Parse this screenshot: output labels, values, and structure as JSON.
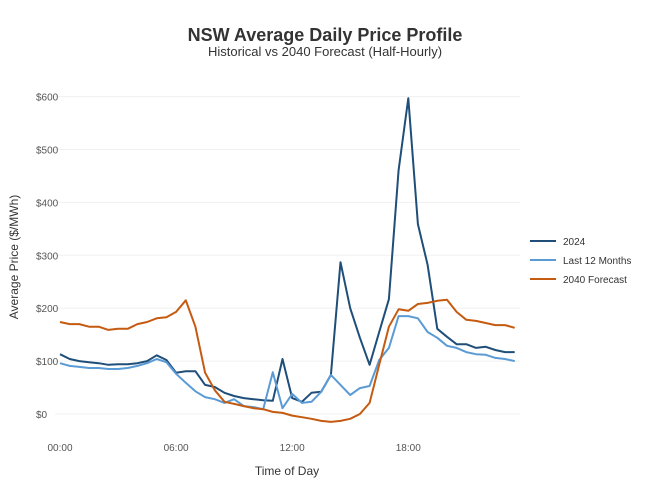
{
  "chart_data": {
    "type": "line",
    "title": "NSW Average Daily Price Profile",
    "subtitle": "Historical vs 2040 Forecast (Half-Hourly)",
    "xlabel": "Time of Day",
    "ylabel": "Average Price ($/MWh)",
    "x_interval": "half-hourly, 48 points from 00:00 to 23:30",
    "x_ticks": [
      "00:00",
      "06:00",
      "12:00",
      "18:00"
    ],
    "y_ticks": [
      "$0",
      "$100",
      "$200",
      "$300",
      "$400",
      "$500",
      "$600"
    ],
    "y_tick_values": [
      0,
      100,
      200,
      300,
      400,
      500,
      600
    ],
    "ylim": [
      -50,
      650
    ],
    "grid": "horizontal",
    "legend_position": "right",
    "series": [
      {
        "name": "2024",
        "color": "#1f4e79",
        "values": [
          113,
          104,
          100,
          98,
          96,
          93,
          94,
          94,
          96,
          100,
          111,
          102,
          78,
          81,
          81,
          55,
          51,
          40,
          34,
          30,
          28,
          26,
          25,
          104,
          30,
          23,
          40,
          42,
          74,
          287,
          200,
          144,
          93,
          155,
          217,
          461,
          597,
          359,
          282,
          161,
          146,
          132,
          132,
          125,
          127,
          121,
          117,
          117
        ]
      },
      {
        "name": "Last 12 Months",
        "color": "#5b9bd5",
        "values": [
          96,
          91,
          89,
          87,
          87,
          85,
          85,
          87,
          91,
          96,
          104,
          98,
          76,
          59,
          43,
          32,
          28,
          21,
          28,
          15,
          13,
          9,
          79,
          11,
          38,
          21,
          23,
          42,
          74,
          55,
          36,
          49,
          53,
          102,
          125,
          185,
          185,
          181,
          155,
          144,
          129,
          125,
          117,
          113,
          112,
          106,
          104,
          100
        ]
      },
      {
        "name": "2040 Forecast",
        "color": "#c55a11",
        "values": [
          174,
          170,
          170,
          165,
          165,
          159,
          161,
          161,
          170,
          174,
          181,
          183,
          193,
          215,
          165,
          78,
          45,
          23,
          19,
          15,
          11,
          9,
          4,
          2,
          -3,
          -6,
          -9,
          -13,
          -15,
          -13,
          -9,
          0,
          21,
          93,
          165,
          198,
          195,
          208,
          210,
          214,
          216,
          193,
          178,
          176,
          172,
          168,
          168,
          163
        ]
      }
    ]
  }
}
